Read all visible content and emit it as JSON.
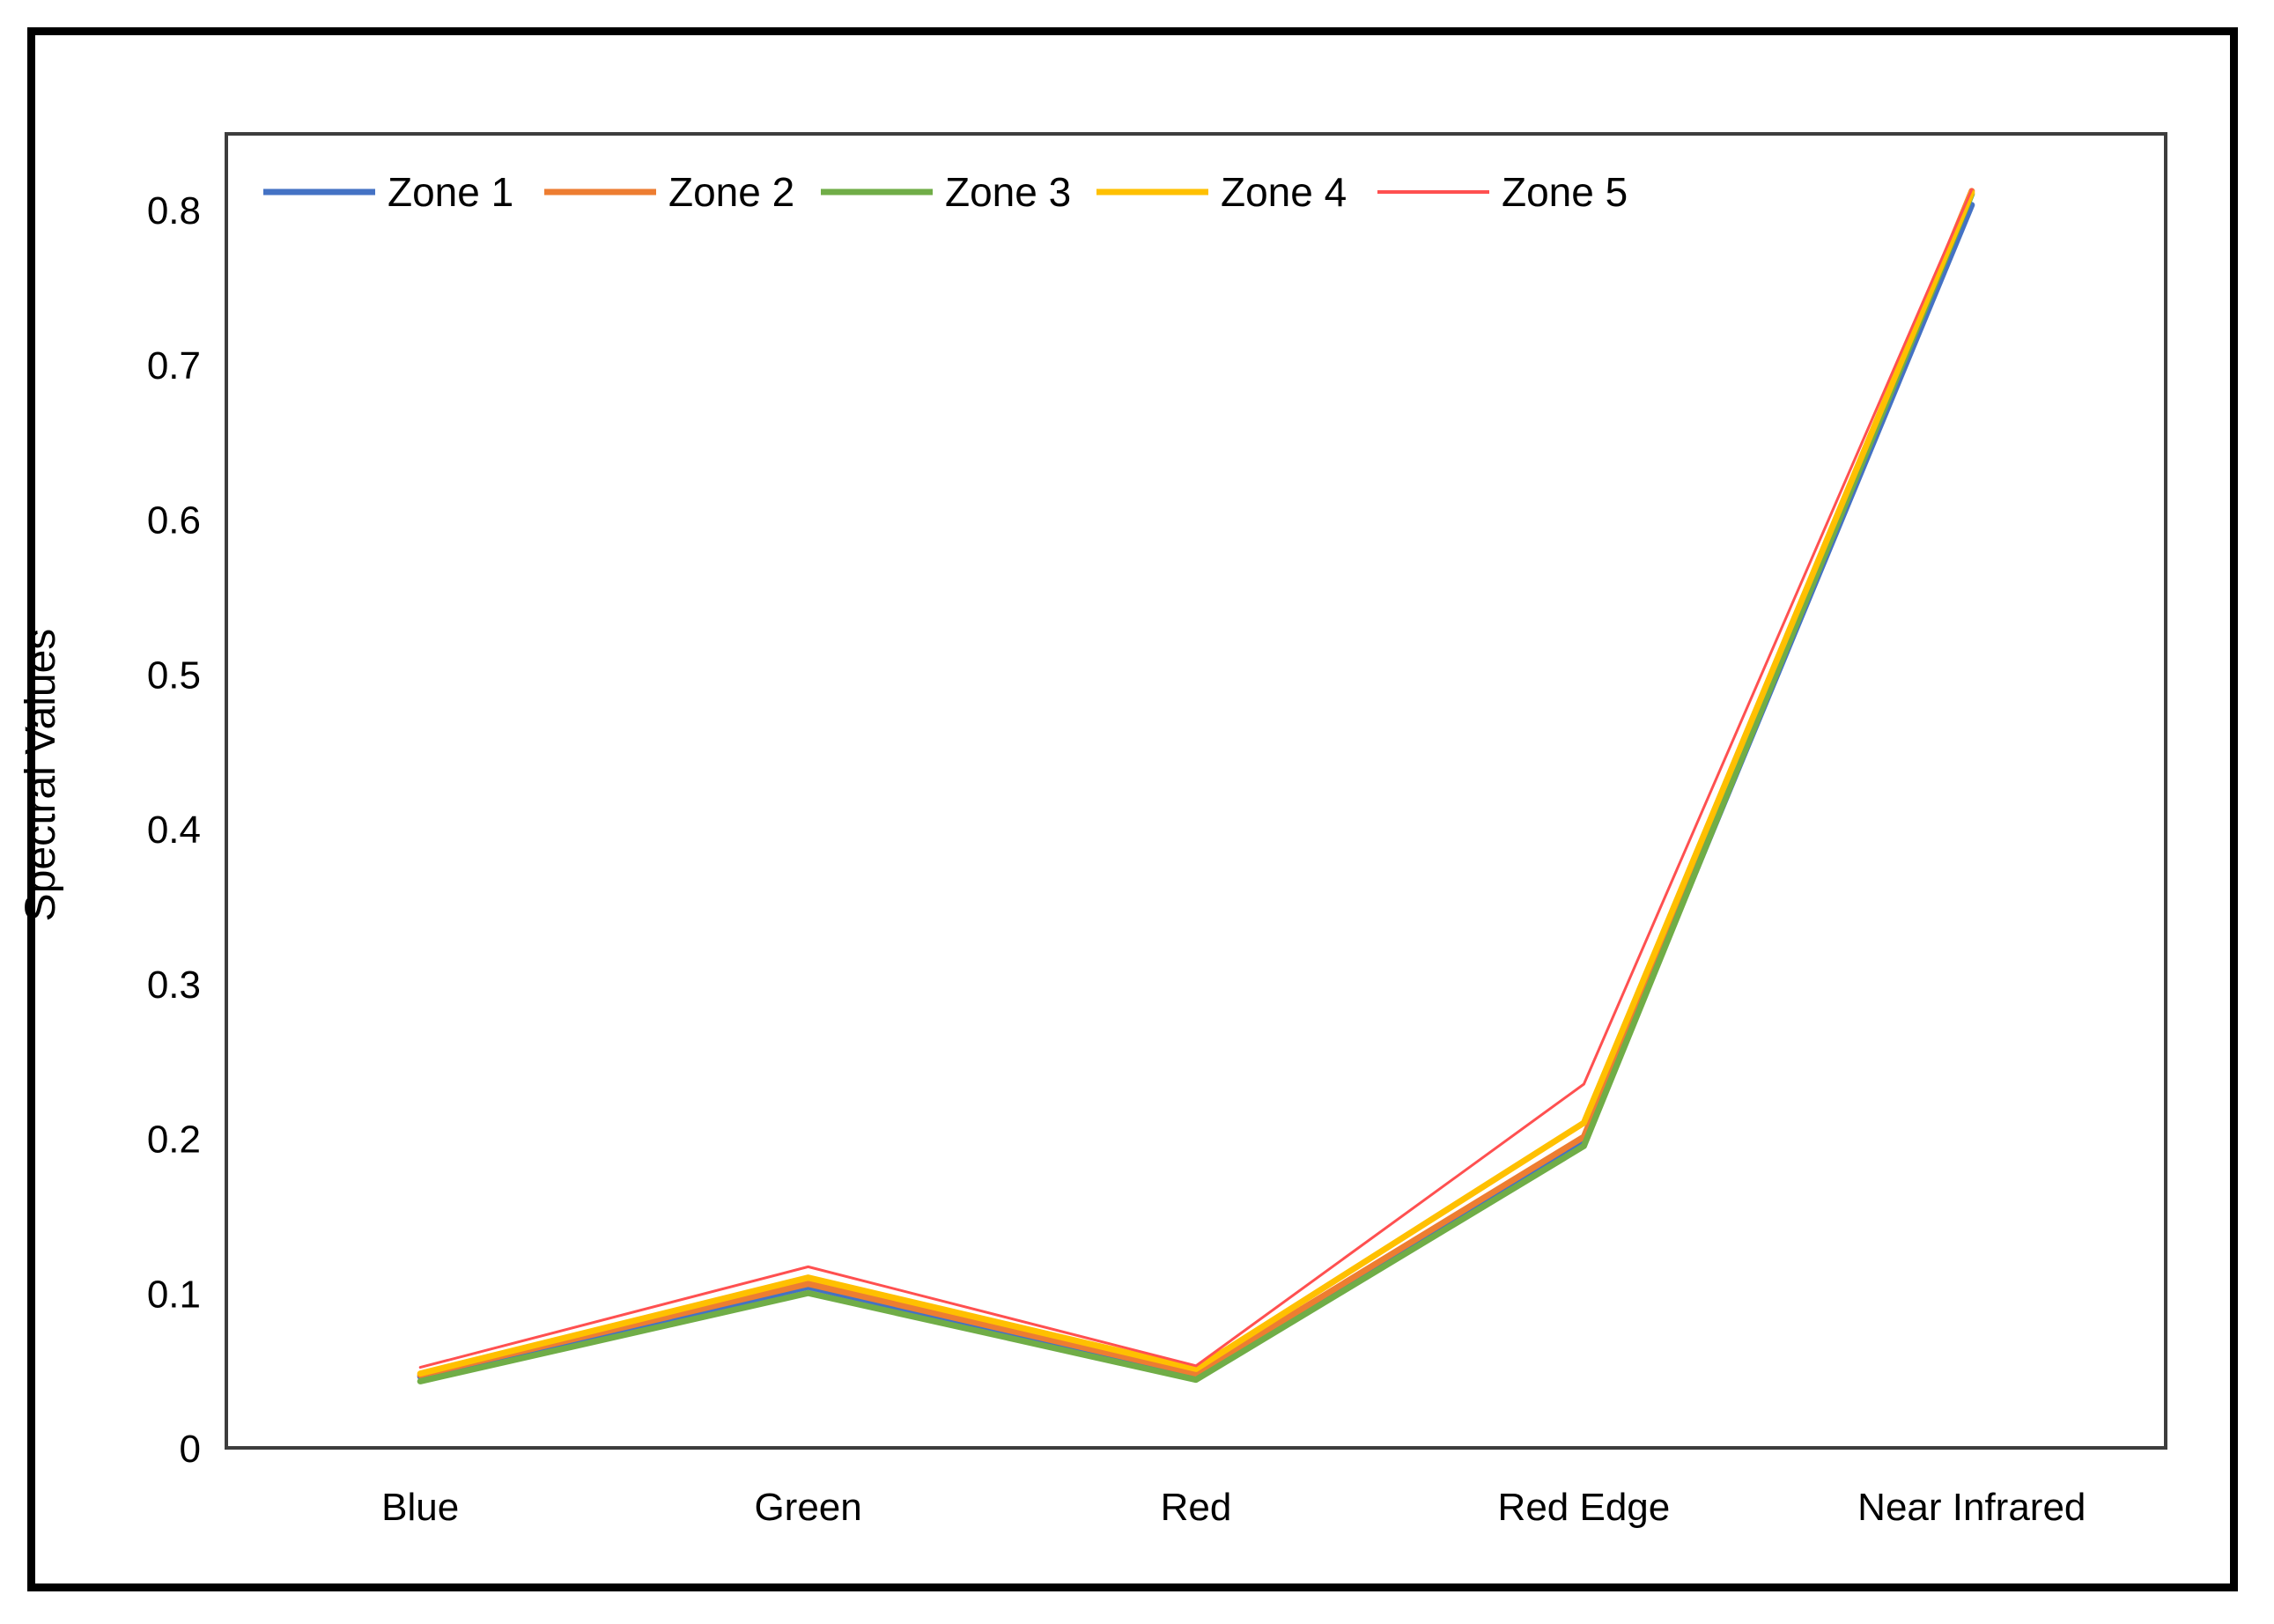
{
  "chart_data": {
    "type": "line",
    "title": "",
    "xlabel": "",
    "ylabel": "Spectral Values",
    "categories": [
      "Blue",
      "Green",
      "Red",
      "Red Edge",
      "Near Infrared"
    ],
    "y_ticks": [
      0,
      0.1,
      0.2,
      0.3,
      0.4,
      0.5,
      0.6,
      0.7,
      0.8
    ],
    "ylim": [
      0,
      0.85
    ],
    "grid": false,
    "legend_position": "top-left-horizontal",
    "axis_border_color": "#3d3d3d",
    "series": [
      {
        "name": "Zone 1",
        "color": "#4472C4",
        "line_width": 7,
        "values": [
          0.046,
          0.104,
          0.047,
          0.198,
          0.803
        ]
      },
      {
        "name": "Zone 2",
        "color": "#ED7D31",
        "line_width": 7,
        "values": [
          0.047,
          0.106,
          0.048,
          0.201,
          0.812
        ]
      },
      {
        "name": "Zone 3",
        "color": "#70AD47",
        "line_width": 7,
        "values": [
          0.043,
          0.1,
          0.044,
          0.195,
          0.81
        ]
      },
      {
        "name": "Zone 4",
        "color": "#FFC000",
        "line_width": 7,
        "values": [
          0.048,
          0.11,
          0.051,
          0.21,
          0.811
        ]
      },
      {
        "name": "Zone 5",
        "color": "#FF5050",
        "line_width": 3,
        "values": [
          0.052,
          0.117,
          0.053,
          0.235,
          0.813
        ]
      }
    ]
  }
}
